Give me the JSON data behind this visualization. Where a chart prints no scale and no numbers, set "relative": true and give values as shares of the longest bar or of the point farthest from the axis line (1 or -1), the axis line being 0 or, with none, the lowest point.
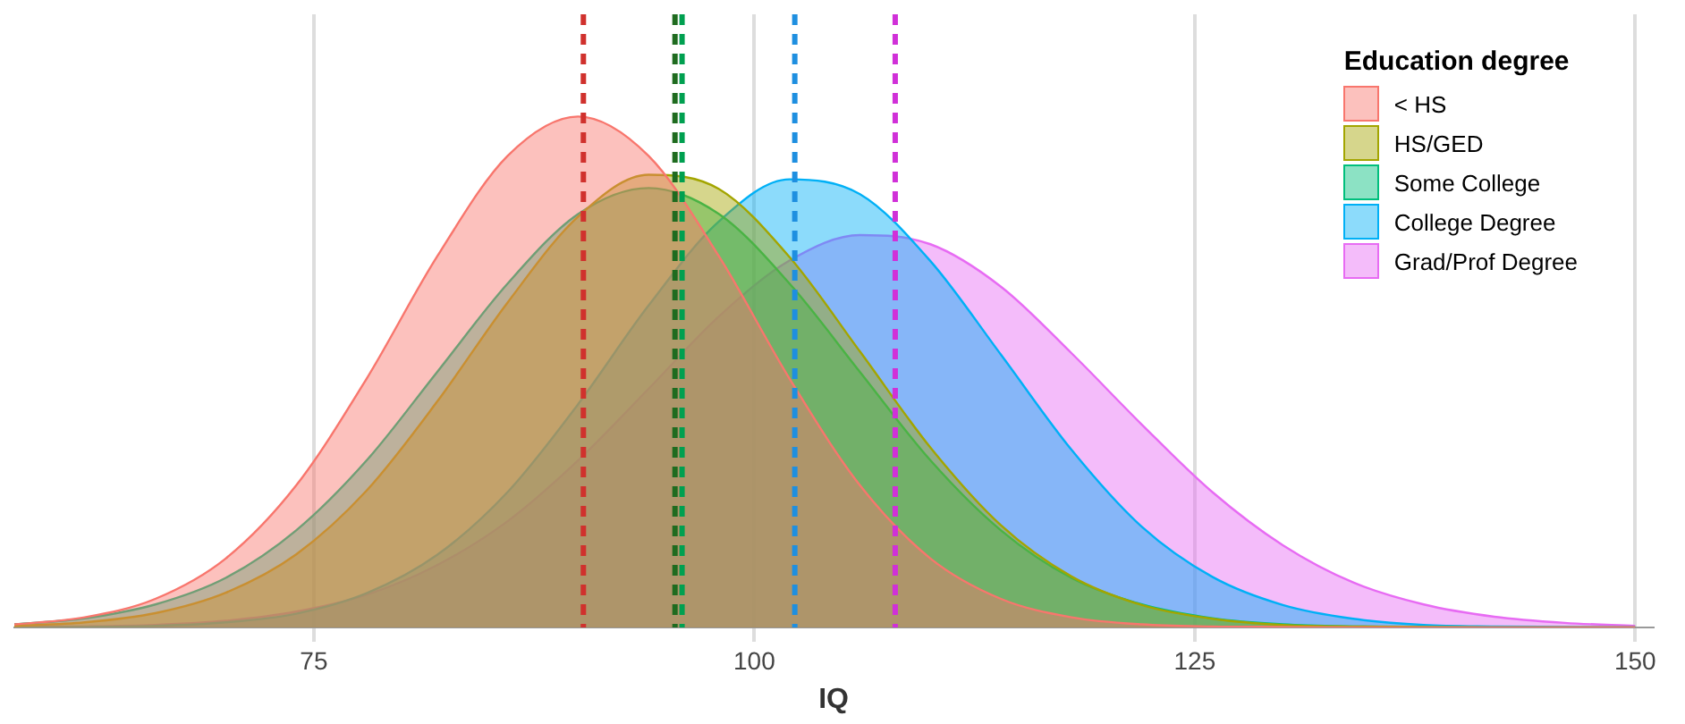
{
  "chart_data": {
    "type": "area",
    "relative": true,
    "xlabel": "IQ",
    "legend_title": "Education degree",
    "legend": "top right",
    "grid": "x",
    "xlim": [
      58,
      151
    ],
    "xticks": [
      75,
      100,
      125,
      150
    ],
    "x": [
      58,
      62,
      66,
      70,
      74,
      78,
      82,
      86,
      90,
      94,
      98,
      102,
      106,
      110,
      114,
      118,
      122,
      126,
      130,
      134,
      138,
      142,
      146,
      150
    ],
    "series": [
      {
        "name": "< HS",
        "color": "#f8766d",
        "values": [
          0.006,
          0.02,
          0.056,
          0.135,
          0.278,
          0.487,
          0.726,
          0.923,
          1,
          0.923,
          0.726,
          0.487,
          0.278,
          0.135,
          0.056,
          0.02,
          0.006,
          0.002,
          0.001,
          0,
          0,
          0,
          0,
          0
        ]
      },
      {
        "name": "HS/GED",
        "color": "#a3a500",
        "values": [
          0.003,
          0.01,
          0.028,
          0.068,
          0.143,
          0.268,
          0.442,
          0.636,
          0.804,
          0.886,
          0.858,
          0.725,
          0.54,
          0.352,
          0.2,
          0.1,
          0.044,
          0.017,
          0.005,
          0.002,
          0.001,
          0,
          0,
          0
        ]
      },
      {
        "name": "Some College",
        "color": "#00bf7d",
        "values": [
          0.006,
          0.018,
          0.045,
          0.097,
          0.19,
          0.327,
          0.5,
          0.673,
          0.809,
          0.86,
          0.809,
          0.673,
          0.5,
          0.327,
          0.19,
          0.097,
          0.045,
          0.018,
          0.006,
          0.002,
          0.001,
          0,
          0,
          0
        ]
      },
      {
        "name": "College Degree",
        "color": "#00b0f6",
        "values": [
          0,
          0.001,
          0.003,
          0.01,
          0.027,
          0.067,
          0.142,
          0.265,
          0.437,
          0.63,
          0.795,
          0.877,
          0.848,
          0.717,
          0.534,
          0.348,
          0.197,
          0.099,
          0.044,
          0.017,
          0.005,
          0.002,
          0.001,
          0
        ]
      },
      {
        "name": "Grad/Prof Degree",
        "color": "#e76bf3",
        "values": [
          0.001,
          0.002,
          0.005,
          0.013,
          0.031,
          0.064,
          0.122,
          0.208,
          0.327,
          0.467,
          0.609,
          0.718,
          0.768,
          0.75,
          0.667,
          0.537,
          0.397,
          0.265,
          0.161,
          0.088,
          0.045,
          0.021,
          0.009,
          0.003
        ]
      }
    ],
    "ref_lines": [
      {
        "axis": "x",
        "value": 90.3,
        "color": "#d0312d",
        "line_style": "dashed"
      },
      {
        "axis": "x",
        "value": 95.5,
        "color": "#1f6b1f",
        "line_style": "dashed"
      },
      {
        "axis": "x",
        "value": 95.9,
        "color": "#00a050",
        "line_style": "dashed"
      },
      {
        "axis": "x",
        "value": 102.3,
        "color": "#1e8fe0",
        "line_style": "dashed"
      },
      {
        "axis": "x",
        "value": 108,
        "color": "#d030d8",
        "line_style": "dashed"
      }
    ]
  }
}
